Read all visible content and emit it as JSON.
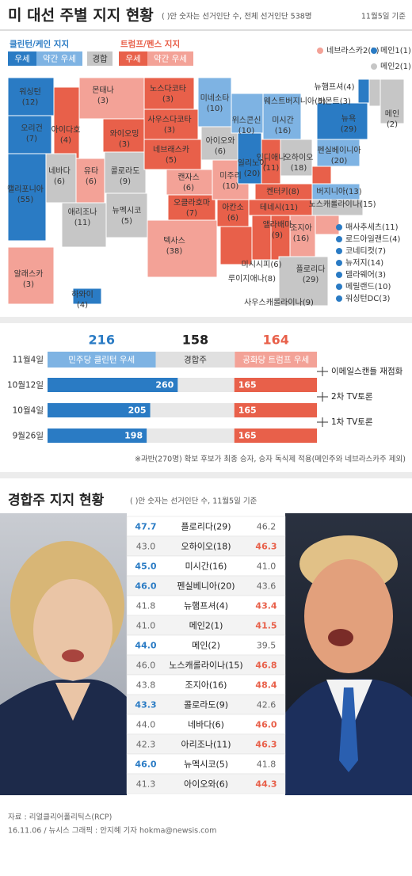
{
  "header": {
    "title": "미 대선 주별 지지 현황",
    "note": "( )안 숫자는 선거인단 수, 전체 선거인단 538명",
    "date": "11월5일 기준"
  },
  "legend": {
    "clinton": {
      "label": "클린턴/케인 지지",
      "strong": {
        "label": "우세",
        "color": "#2a7bc4"
      },
      "lean": {
        "label": "약간 우세",
        "color": "#7eb3e3"
      }
    },
    "tossup": {
      "label": "경합",
      "color": "#c6c6c6"
    },
    "trump": {
      "label": "트럼프/펜스 지지",
      "strong": {
        "label": "우세",
        "color": "#e8604a"
      },
      "lean": {
        "label": "약간 우세",
        "color": "#f3a297"
      }
    }
  },
  "states": [
    {
      "name": "워싱턴",
      "votes": "(12)",
      "color": "#2a7bc4"
    },
    {
      "name": "오리건",
      "votes": "(7)",
      "color": "#2a7bc4"
    },
    {
      "name": "캘리포니아",
      "votes": "(55)",
      "color": "#2a7bc4"
    },
    {
      "name": "아이다호",
      "votes": "(4)",
      "color": "#e8604a"
    },
    {
      "name": "네바다",
      "votes": "(6)",
      "color": "#c6c6c6"
    },
    {
      "name": "몬태나",
      "votes": "(3)",
      "color": "#f3a297"
    },
    {
      "name": "와이오밍",
      "votes": "(3)",
      "color": "#e8604a"
    },
    {
      "name": "유타",
      "votes": "(6)",
      "color": "#f3a297"
    },
    {
      "name": "애리조나",
      "votes": "(11)",
      "color": "#c6c6c6"
    },
    {
      "name": "콜로라도",
      "votes": "(9)",
      "color": "#c6c6c6"
    },
    {
      "name": "뉴멕시코",
      "votes": "(5)",
      "color": "#c6c6c6"
    },
    {
      "name": "노스다코타",
      "votes": "(3)",
      "color": "#e8604a"
    },
    {
      "name": "사우스다코타",
      "votes": "(3)",
      "color": "#e8604a"
    },
    {
      "name": "네브래스카",
      "votes": "(5)",
      "color": "#e8604a"
    },
    {
      "name": "캔자스",
      "votes": "(6)",
      "color": "#f3a297"
    },
    {
      "name": "오클라호마",
      "votes": "(7)",
      "color": "#e8604a"
    },
    {
      "name": "텍사스",
      "votes": "(38)",
      "color": "#f3a297"
    },
    {
      "name": "미네소타",
      "votes": "(10)",
      "color": "#7eb3e3"
    },
    {
      "name": "아이오와",
      "votes": "(6)",
      "color": "#c6c6c6"
    },
    {
      "name": "미주리",
      "votes": "(10)",
      "color": "#f3a297"
    },
    {
      "name": "아칸소",
      "votes": "(6)",
      "color": "#e8604a"
    },
    {
      "name": "루이지애나",
      "votes": "(8)",
      "color": "#e8604a"
    },
    {
      "name": "위스콘신",
      "votes": "(10)",
      "color": "#7eb3e3"
    },
    {
      "name": "일리노이",
      "votes": "(20)",
      "color": "#2a7bc4"
    },
    {
      "name": "미시간",
      "votes": "(16)",
      "color": "#7eb3e3"
    },
    {
      "name": "인디애나",
      "votes": "(11)",
      "color": "#e8604a"
    },
    {
      "name": "오하이오",
      "votes": "(18)",
      "color": "#c6c6c6"
    },
    {
      "name": "켄터키",
      "votes": "(8)",
      "color": "#e8604a"
    },
    {
      "name": "테네시",
      "votes": "(11)",
      "color": "#e8604a"
    },
    {
      "name": "미시시피",
      "votes": "(6)",
      "color": "#e8604a"
    },
    {
      "name": "앨라배마",
      "votes": "(9)",
      "color": "#e8604a"
    },
    {
      "name": "조지아",
      "votes": "(16)",
      "color": "#f3a297"
    },
    {
      "name": "플로리다",
      "votes": "(29)",
      "color": "#c6c6c6"
    },
    {
      "name": "사우스캐롤라이나",
      "votes": "(9)",
      "color": "#f3a297"
    },
    {
      "name": "노스캐롤라이나",
      "votes": "(15)",
      "color": "#c6c6c6"
    },
    {
      "name": "버지니아",
      "votes": "(13)",
      "color": "#7eb3e3"
    },
    {
      "name": "웨스트버지니아",
      "votes": "(5)",
      "color": "#e8604a"
    },
    {
      "name": "펜실베이니아",
      "votes": "(20)",
      "color": "#7eb3e3"
    },
    {
      "name": "뉴욕",
      "votes": "(29)",
      "color": "#2a7bc4"
    },
    {
      "name": "버몬트",
      "votes": "(3)",
      "color": "#2a7bc4"
    },
    {
      "name": "뉴햄프셔",
      "votes": "(4)",
      "color": "#c6c6c6"
    },
    {
      "name": "메인",
      "votes": "(2)",
      "color": "#c6c6c6"
    },
    {
      "name": "알래스카",
      "votes": "(3)",
      "color": "#f3a297"
    },
    {
      "name": "하와이",
      "votes": "(4)",
      "color": "#2a7bc4"
    }
  ],
  "districts": [
    {
      "name": "네브라스카2",
      "votes": "(1)",
      "color": "#f3a297"
    },
    {
      "name": "메인1",
      "votes": "(1)",
      "color": "#2a7bc4"
    },
    {
      "name": "메인2",
      "votes": "(1)",
      "color": "#c6c6c6"
    }
  ],
  "small_states": [
    {
      "name": "매사추세츠",
      "votes": "(11)",
      "color": "#2a7bc4"
    },
    {
      "name": "로드아일랜드",
      "votes": "(4)",
      "color": "#2a7bc4"
    },
    {
      "name": "코네티컷",
      "votes": "(7)",
      "color": "#2a7bc4"
    },
    {
      "name": "뉴저지",
      "votes": "(14)",
      "color": "#2a7bc4"
    },
    {
      "name": "델라웨어",
      "votes": "(3)",
      "color": "#2a7bc4"
    },
    {
      "name": "메릴랜드",
      "votes": "(10)",
      "color": "#2a7bc4"
    },
    {
      "name": "워싱턴DC",
      "votes": "(3)",
      "color": "#2a7bc4"
    }
  ],
  "tally": {
    "date": "11월4일",
    "clinton": {
      "value": 216,
      "label": "민주당 클린턴 우세"
    },
    "tossup": {
      "value": 158,
      "label": "경합주"
    },
    "trump": {
      "value": 164,
      "label": "공화당 트럼프 우세"
    },
    "rows": [
      {
        "date": "10월12일",
        "clinton": 260,
        "trump": 165
      },
      {
        "date": "10월4일",
        "clinton": 205,
        "trump": 165
      },
      {
        "date": "9월26일",
        "clinton": 198,
        "trump": 165
      }
    ],
    "events": [
      "이메일스캔들 재점화",
      "2차 TV토론",
      "1차 TV토론"
    ],
    "footnote": "※과반(270명) 확보 후보가 최종 승자, 승자 독식제 적용(메인주와 네브라스카주 제외)"
  },
  "battleground": {
    "title": "경합주 지지 현황",
    "note": "( )안 숫자는 선거인단 수, 11월5일 기준",
    "rows": [
      {
        "state": "플로리다(29)",
        "clinton": "47.7",
        "trump": "46.2"
      },
      {
        "state": "오하이오(18)",
        "clinton": "43.0",
        "trump": "46.3"
      },
      {
        "state": "미시간(16)",
        "clinton": "45.0",
        "trump": "41.0"
      },
      {
        "state": "펜실베니아(20)",
        "clinton": "46.0",
        "trump": "43.6"
      },
      {
        "state": "뉴햄프셔(4)",
        "clinton": "41.8",
        "trump": "43.4"
      },
      {
        "state": "메인2(1)",
        "clinton": "41.0",
        "trump": "41.5"
      },
      {
        "state": "메인(2)",
        "clinton": "44.0",
        "trump": "39.5"
      },
      {
        "state": "노스캐롤라이나(15)",
        "clinton": "46.0",
        "trump": "46.8"
      },
      {
        "state": "조지아(16)",
        "clinton": "43.8",
        "trump": "48.4"
      },
      {
        "state": "콜로라도(9)",
        "clinton": "43.3",
        "trump": "42.6"
      },
      {
        "state": "네바다(6)",
        "clinton": "44.0",
        "trump": "46.0"
      },
      {
        "state": "아리조나(11)",
        "clinton": "42.3",
        "trump": "46.3"
      },
      {
        "state": "뉴멕시코(5)",
        "clinton": "46.0",
        "trump": "41.8"
      },
      {
        "state": "아이오와(6)",
        "clinton": "41.3",
        "trump": "44.3"
      }
    ]
  },
  "footer": {
    "source": "자료 : 리얼클리어폴리틱스(RCP)",
    "credit": "16.11.06 / 뉴시스 그래픽 : 안지혜 기자 hokma@newsis.com"
  }
}
